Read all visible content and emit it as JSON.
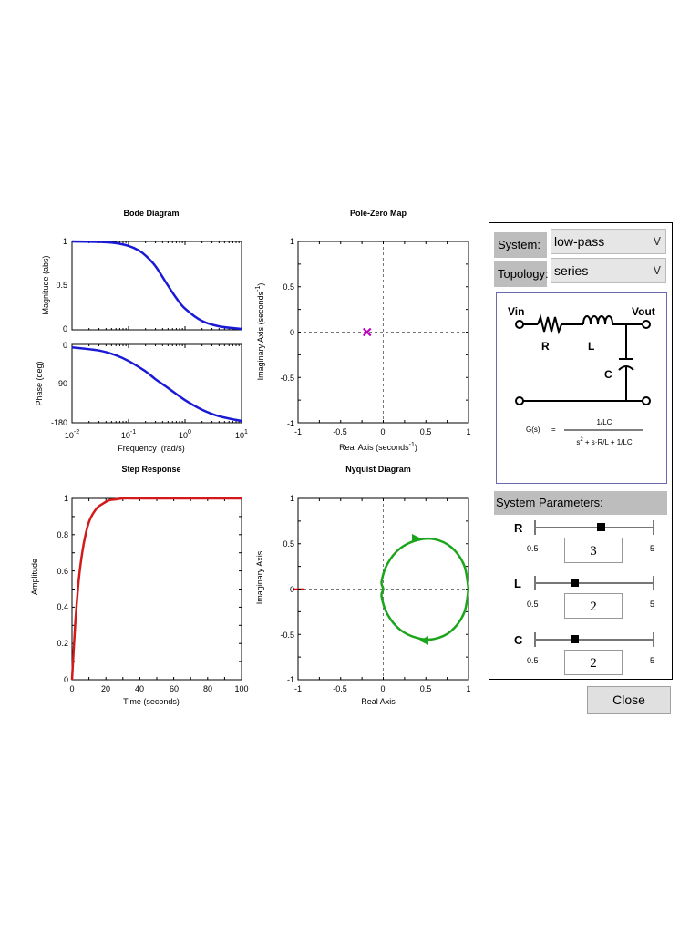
{
  "plots": {
    "bode": {
      "title": "Bode Diagram",
      "mag_ylabel": "Magnitude (abs)",
      "phase_ylabel": "Phase (deg)",
      "xlabel": "Frequency  (rad/s)",
      "mag_ticks": [
        "1",
        "0.5",
        "0"
      ],
      "phase_ticks": [
        "0",
        "-90",
        "-180"
      ],
      "x_ticks": [
        {
          "base": "10",
          "exp": "-2"
        },
        {
          "base": "10",
          "exp": "-1"
        },
        {
          "base": "10",
          "exp": "0"
        },
        {
          "base": "10",
          "exp": "1"
        }
      ]
    },
    "pz": {
      "title": "Pole-Zero Map",
      "ylabel_main": "Imaginary Axis (seconds",
      "ylabel_exp": "-1",
      "xlabel_main": "Real Axis (seconds",
      "xlabel_exp": "-1",
      "x_ticks": [
        "-1",
        "-0.5",
        "0",
        "0.5",
        "1"
      ],
      "y_ticks": [
        "1",
        "0.5",
        "0",
        "-0.5",
        "-1"
      ]
    },
    "step": {
      "title": "Step Response",
      "xlabel": "Time (seconds)",
      "ylabel": "Amplitude",
      "x_ticks": [
        "0",
        "20",
        "40",
        "60",
        "80",
        "100"
      ],
      "y_ticks": [
        "1",
        "0.8",
        "0.6",
        "0.4",
        "0.2",
        "0"
      ]
    },
    "nyquist": {
      "title": "Nyquist Diagram",
      "xlabel": "Real Axis",
      "ylabel": "Imaginary Axis",
      "x_ticks": [
        "-1",
        "-0.5",
        "0",
        "0.5",
        "1"
      ],
      "y_ticks": [
        "1",
        "0.5",
        "0",
        "-0.5",
        "-1"
      ]
    }
  },
  "chart_data": [
    {
      "type": "line",
      "title": "Bode Diagram",
      "xlabel": "Frequency  (rad/s)",
      "ylabel": "Magnitude (abs)",
      "xscale": "log",
      "xlim": [
        0.01,
        10
      ],
      "ylim": [
        0,
        1
      ],
      "x": [
        0.01,
        0.03,
        0.06,
        0.1,
        0.15,
        0.2,
        0.3,
        0.5,
        0.7,
        1,
        2,
        4,
        10
      ],
      "series": [
        {
          "values": [
            1.0,
            0.995,
            0.98,
            0.95,
            0.9,
            0.84,
            0.72,
            0.5,
            0.36,
            0.24,
            0.1,
            0.04,
            0.01
          ],
          "color": "#1a1ad6"
        }
      ]
    },
    {
      "type": "line",
      "ylabel": "Phase (deg)",
      "xscale": "log",
      "xlim": [
        0.01,
        10
      ],
      "ylim": [
        -180,
        0
      ],
      "x": [
        0.01,
        0.03,
        0.06,
        0.1,
        0.2,
        0.3,
        0.5,
        1,
        2,
        4,
        10
      ],
      "series": [
        {
          "values": [
            -7,
            -14,
            -25,
            -38,
            -62,
            -80,
            -100,
            -128,
            -150,
            -165,
            -176
          ],
          "color": "#1a1ad6"
        }
      ]
    },
    {
      "type": "scatter",
      "title": "Pole-Zero Map",
      "xlim": [
        -1,
        1
      ],
      "ylim": [
        -1,
        1
      ],
      "points": [
        {
          "x": -0.19,
          "y": 0
        }
      ],
      "marker": "x",
      "color": "#c000c0"
    },
    {
      "type": "line",
      "title": "Step Response",
      "xlabel": "Time (seconds)",
      "ylabel": "Amplitude",
      "xlim": [
        0,
        100
      ],
      "ylim": [
        0,
        1
      ],
      "x": [
        0,
        2,
        4,
        6,
        8,
        10,
        12,
        15,
        18,
        22,
        26,
        30,
        40,
        60,
        100
      ],
      "series": [
        {
          "values": [
            0,
            0.32,
            0.55,
            0.7,
            0.8,
            0.87,
            0.91,
            0.95,
            0.97,
            0.99,
            0.995,
            1.0,
            1.0,
            1.0,
            1.0
          ],
          "color": "#d21a1a"
        }
      ]
    },
    {
      "type": "line",
      "title": "Nyquist Diagram",
      "xlabel": "Real Axis",
      "ylabel": "Imaginary Axis",
      "xlim": [
        -1,
        1
      ],
      "ylim": [
        -1,
        1
      ],
      "x": [
        1,
        0.95,
        0.8,
        0.6,
        0.4,
        0.2,
        0.05,
        -0.02,
        0,
        -0.02,
        0.05,
        0.2,
        0.4,
        0.6,
        0.8,
        0.95,
        1
      ],
      "series": [
        {
          "values": [
            0,
            0.26,
            0.46,
            0.55,
            0.54,
            0.45,
            0.28,
            0.08,
            0,
            -0.08,
            -0.28,
            -0.45,
            -0.54,
            -0.55,
            -0.46,
            -0.26,
            0
          ],
          "color": "#1aa51a"
        }
      ]
    }
  ],
  "panel": {
    "system_label": "System:",
    "system_value": "low-pass",
    "topology_label": "Topology:",
    "topology_value": "series",
    "dropdown_chevron": "ᐯ",
    "diagram": {
      "vin": "Vin",
      "vout": "Vout",
      "r": "R",
      "l": "L",
      "c": "C",
      "gs": "G(s)",
      "eq": "=",
      "numerator": "1/LC",
      "den_s": "s",
      "den_exp": "2",
      "den_rest": " + s·R/L + 1/LC"
    },
    "params_label": "System Parameters:",
    "params": [
      {
        "name": "R",
        "min": "0.5",
        "max": "5",
        "value": "3",
        "level": 0.55
      },
      {
        "name": "L",
        "min": "0.5",
        "max": "5",
        "value": "2",
        "level": 0.33
      },
      {
        "name": "C",
        "min": "0.5",
        "max": "5",
        "value": "2",
        "level": 0.33
      }
    ]
  },
  "close_label": "Close"
}
